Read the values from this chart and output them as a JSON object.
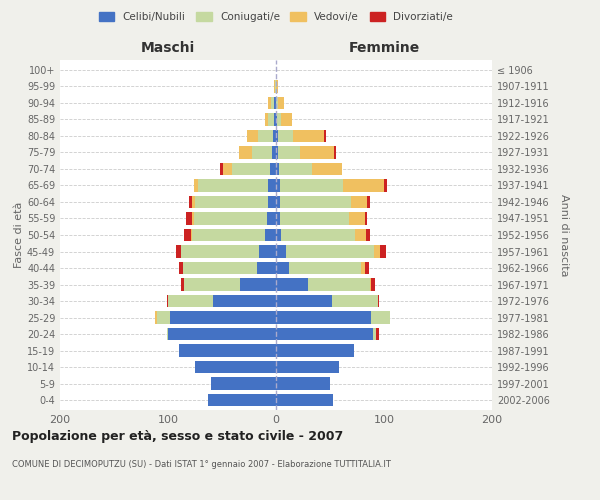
{
  "age_groups": [
    "100+",
    "95-99",
    "90-94",
    "85-89",
    "80-84",
    "75-79",
    "70-74",
    "65-69",
    "60-64",
    "55-59",
    "50-54",
    "45-49",
    "40-44",
    "35-39",
    "30-34",
    "25-29",
    "20-24",
    "15-19",
    "10-14",
    "5-9",
    "0-4"
  ],
  "birth_years": [
    "≤ 1906",
    "1907-1911",
    "1912-1916",
    "1917-1921",
    "1922-1926",
    "1927-1931",
    "1932-1936",
    "1937-1941",
    "1942-1946",
    "1947-1951",
    "1952-1956",
    "1957-1961",
    "1962-1966",
    "1967-1971",
    "1972-1976",
    "1977-1981",
    "1982-1986",
    "1987-1991",
    "1992-1996",
    "1997-2001",
    "2002-2006"
  ],
  "colors": {
    "celibi": "#4472c4",
    "coniugati": "#c5d9a0",
    "vedovi": "#f0c060",
    "divorziati": "#cc2222"
  },
  "maschi": {
    "celibi": [
      0,
      0,
      2,
      2,
      3,
      4,
      6,
      7,
      7,
      8,
      10,
      16,
      18,
      33,
      58,
      98,
      100,
      90,
      75,
      60,
      63
    ],
    "coniugati": [
      0,
      1,
      3,
      5,
      14,
      18,
      35,
      65,
      68,
      68,
      68,
      72,
      68,
      52,
      42,
      12,
      1,
      0,
      0,
      0,
      0
    ],
    "vedovi": [
      0,
      1,
      2,
      3,
      10,
      12,
      8,
      4,
      3,
      2,
      1,
      0,
      0,
      0,
      0,
      2,
      0,
      0,
      0,
      0,
      0
    ],
    "divorziati": [
      0,
      0,
      0,
      0,
      0,
      0,
      3,
      0,
      3,
      5,
      6,
      5,
      4,
      3,
      1,
      0,
      0,
      0,
      0,
      0,
      0
    ]
  },
  "femmine": {
    "celibi": [
      0,
      0,
      0,
      1,
      2,
      2,
      3,
      4,
      4,
      4,
      5,
      9,
      12,
      30,
      52,
      88,
      90,
      72,
      58,
      50,
      53
    ],
    "coniugati": [
      0,
      0,
      2,
      4,
      14,
      20,
      30,
      58,
      65,
      64,
      68,
      82,
      67,
      57,
      42,
      18,
      3,
      0,
      0,
      0,
      0
    ],
    "vedovi": [
      0,
      2,
      5,
      10,
      28,
      32,
      28,
      38,
      15,
      14,
      10,
      5,
      3,
      1,
      0,
      0,
      0,
      0,
      0,
      0,
      0
    ],
    "divorziati": [
      0,
      0,
      0,
      0,
      2,
      2,
      0,
      3,
      3,
      2,
      4,
      6,
      4,
      4,
      1,
      0,
      2,
      0,
      0,
      0,
      0
    ]
  },
  "xlim": 200,
  "title": "Popolazione per età, sesso e stato civile - 2007",
  "subtitle": "COMUNE DI DECIMOPUTZU (SU) - Dati ISTAT 1° gennaio 2007 - Elaborazione TUTTITALIA.IT",
  "ylabel_left": "Fasce di età",
  "ylabel_right": "Anni di nascita",
  "xlabel_left": "Maschi",
  "xlabel_right": "Femmine",
  "bg_color": "#f0f0eb",
  "plot_bg_color": "#ffffff"
}
